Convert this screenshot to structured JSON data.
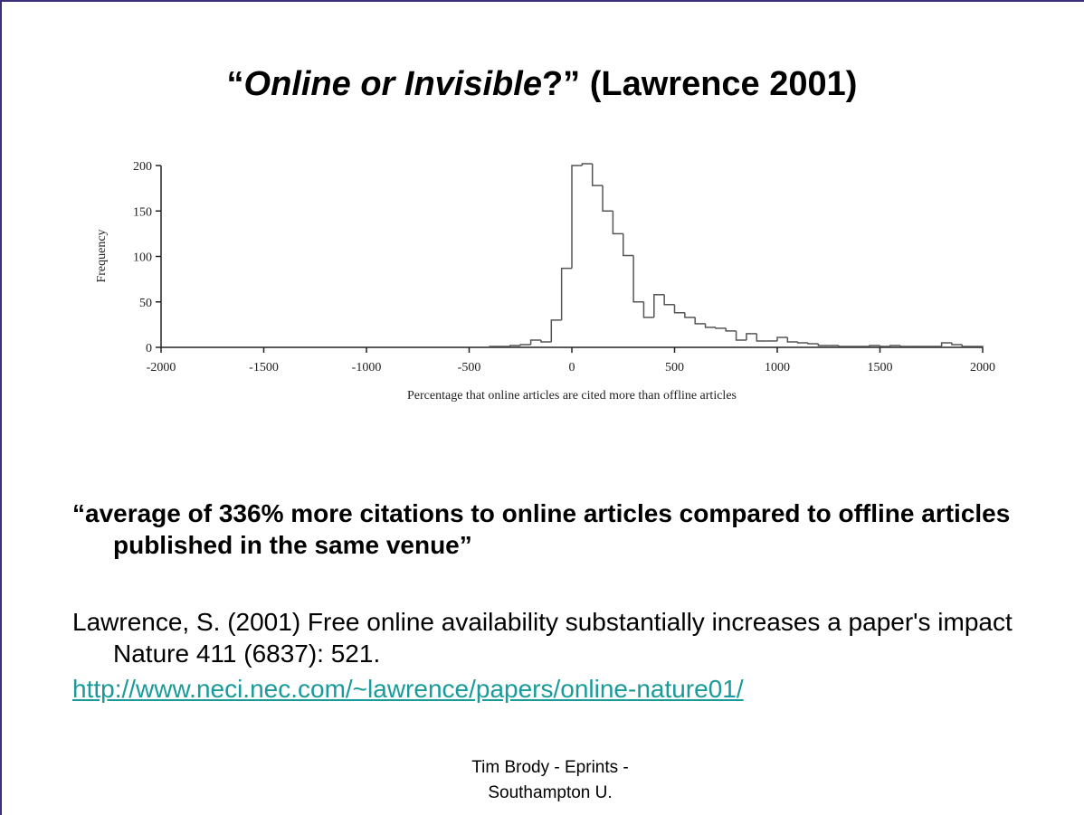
{
  "title": {
    "open": "“",
    "italic": "Online or Invisible",
    "rest": "?” (Lawrence 2001)"
  },
  "chart_data": {
    "type": "histogram",
    "xlabel": "Percentage that online articles are cited more than offline articles",
    "ylabel": "Frequency",
    "bins": [
      -400,
      -350,
      -300,
      -250,
      -200,
      -150,
      -100,
      -50,
      0,
      50,
      100,
      150,
      200,
      250,
      300,
      350,
      400,
      450,
      500,
      550,
      600,
      650,
      700,
      750,
      800,
      850,
      900,
      950,
      1000,
      1050,
      1100,
      1150,
      1200,
      1250,
      1300,
      1350,
      1400,
      1450,
      1500,
      1550,
      1600,
      1650,
      1700,
      1750,
      1800,
      1850,
      1900,
      1950,
      2000
    ],
    "values": [
      1,
      1,
      2,
      3,
      8,
      6,
      30,
      87,
      200,
      202,
      178,
      150,
      125,
      101,
      50,
      33,
      58,
      47,
      38,
      33,
      26,
      22,
      21,
      18,
      8,
      15,
      7,
      7,
      11,
      6,
      5,
      4,
      2,
      2,
      1,
      1,
      1,
      2,
      1,
      2,
      1,
      1,
      1,
      1,
      5,
      3,
      1,
      1
    ],
    "color": "#555555",
    "xlim": [
      -2000,
      2000
    ],
    "xticks": [
      -2000,
      -1500,
      -1000,
      -500,
      0,
      500,
      1000,
      1500,
      2000
    ],
    "ylim": [
      0,
      200
    ],
    "yticks": [
      0,
      50,
      100,
      150,
      200
    ]
  },
  "quote": "“average of 336% more citations to online articles compared to offline articles published in the same venue”",
  "reference": "Lawrence, S. (2001) Free online availability substantially increases a paper's impact Nature 411 (6837): 521.",
  "url": "http://www.neci.nec.com/~lawrence/papers/online-nature01/",
  "footer": [
    "Tim Brody - Eprints -",
    "Southampton U."
  ]
}
